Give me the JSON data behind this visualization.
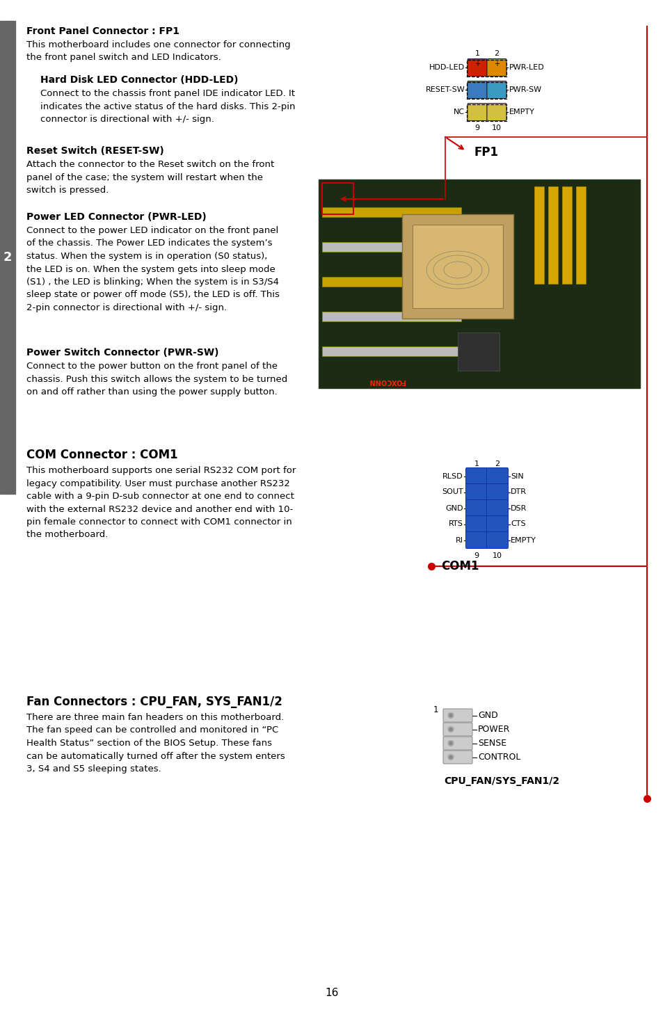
{
  "page_bg": "#ffffff",
  "page_number": "16",
  "sidebar_color": "#555555",
  "sidebar_number": "2",
  "red_line_color": "#cc0000",
  "section1_title": "Front Panel Connector : FP1",
  "section1_body1": "This motherboard includes one connector for connecting",
  "section1_body2": "the front panel switch and LED Indicators.",
  "sub1_title": "Hard Disk LED Connector (HDD-LED)",
  "sub1_body": "Connect to the chassis front panel IDE indicator LED. It\nindicates the active status of the hard disks. This 2-pin\nconnector is directional with +/- sign.",
  "sub2_title": "Reset Switch (RESET-SW)",
  "sub2_body": "Attach the connector to the Reset switch on the front\npanel of the case; the system will restart when the\nswitch is pressed.",
  "sub3_title": "Power LED Connector (PWR-LED)",
  "sub3_body": "Connect to the power LED indicator on the front panel\nof the chassis. The Power LED indicates the system’s\nstatus. When the system is in operation (S0 status),\nthe LED is on. When the system gets into sleep mode\n(S1) , the LED is blinking; When the system is in S3/S4\nsleep state or power off mode (S5), the LED is off. This\n2-pin connector is directional with +/- sign.",
  "sub4_title": "Power Switch Connector (PWR-SW)",
  "sub4_body": "Connect to the power button on the front panel of the\nchassis. Push this switch allows the system to be turned\non and off rather than using the power supply button.",
  "section2_title": "COM Connector : COM1",
  "section2_body": "This motherboard supports one serial RS232 COM port for\nlegacy compatibility. User must purchase another RS232\ncable with a 9-pin D-sub connector at one end to connect\nwith the external RS232 device and another end with 10-\npin female connector to connect with COM1 connector in\nthe motherboard.",
  "section3_title": "Fan Connectors : CPU_FAN, SYS_FAN1/2",
  "section3_body": "There are three main fan headers on this motherboard.\nThe fan speed can be controlled and monitored in “PC\nHealth Status” section of the BIOS Setup. These fans\ncan be automatically turned off after the system enters\n3, S4 and S5 sleeping states.",
  "fp1_labels_left": [
    "HDD-LED",
    "RESET-SW",
    "NC"
  ],
  "fp1_labels_right": [
    "PWR-LED",
    "PWR-SW",
    "EMPTY"
  ],
  "fp1_label": "FP1",
  "com1_labels_left": [
    "RLSD",
    "SOUT",
    "GND",
    "RTS",
    "RI"
  ],
  "com1_labels_right": [
    "SIN",
    "DTR",
    "DSR",
    "CTS",
    "EMPTY"
  ],
  "com1_label": "COM1",
  "fan_labels": [
    "GND",
    "POWER",
    "SENSE",
    "CONTROL"
  ],
  "fan_label": "CPU_FAN/SYS_FAN1/2",
  "fp1_row_colors_left": [
    "#cc2200",
    "#3a7abf",
    "#d4c040"
  ],
  "fp1_row_colors_right": [
    "#dd8800",
    "#3a9abf",
    "#d4c040"
  ]
}
